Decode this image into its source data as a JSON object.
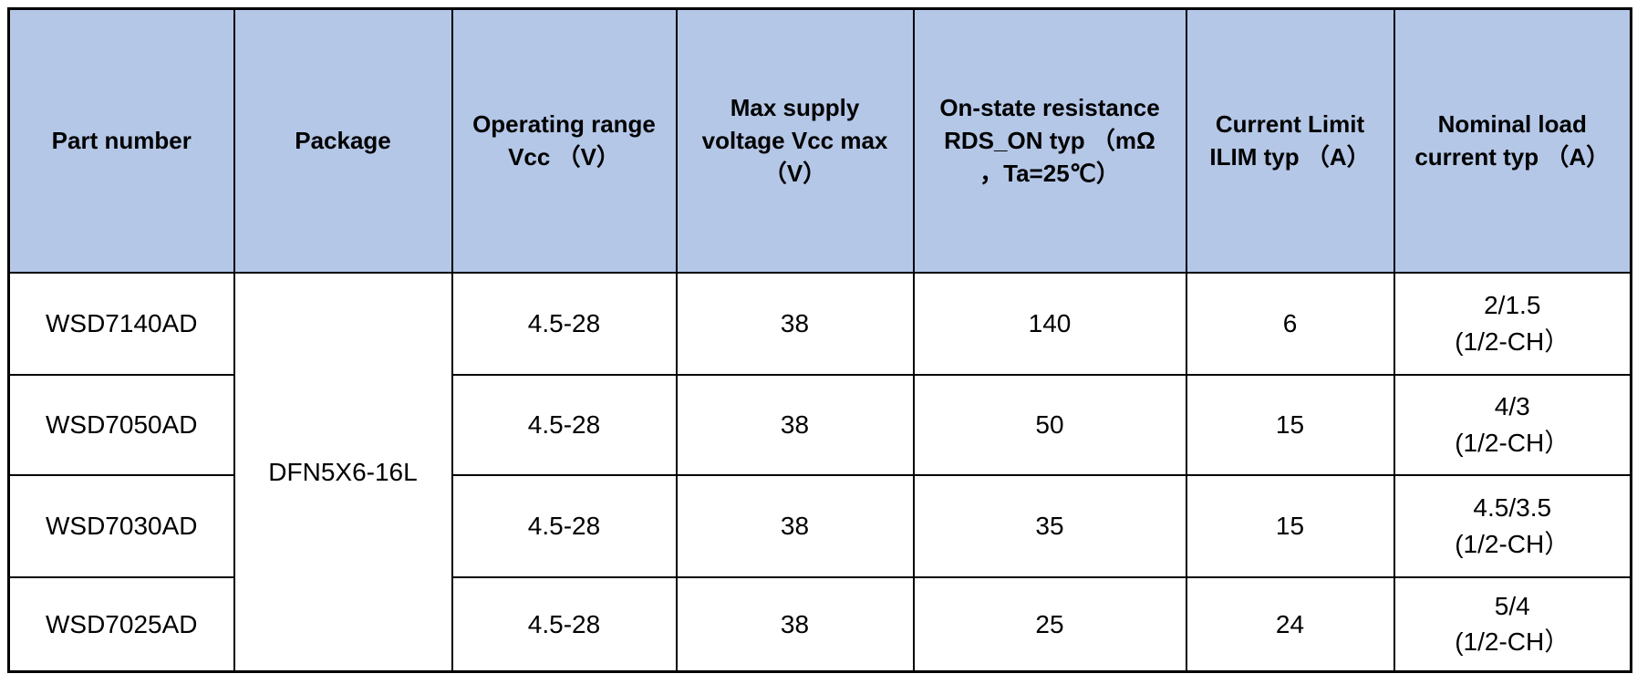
{
  "table": {
    "title_semantic": "part-selection-table",
    "colors": {
      "header_background": "#B4C7E7",
      "grid_border": "#000000",
      "text": "#000000",
      "page_background": "#FFFFFF"
    },
    "columns": [
      "Part number",
      "Package",
      "Operating range\nVcc （V）",
      "Max supply\nvoltage Vcc max\n（V）",
      "On-state resistance\nRDS_ON typ （mΩ\n，Ta=25℃）",
      "Current Limit\nILIM typ （A）",
      "Nominal load\ncurrent typ （A）"
    ],
    "package_merged": "DFN5X6-16L",
    "rows": [
      {
        "part_number": "WSD7140AD",
        "operating_range_vcc": "4.5-28",
        "max_supply_voltage": "38",
        "rds_on_typ": "140",
        "ilim_typ": "6",
        "nominal_load_current": "2/1.5\n(1/2-CH）"
      },
      {
        "part_number": "WSD7050AD",
        "operating_range_vcc": "4.5-28",
        "max_supply_voltage": "38",
        "rds_on_typ": "50",
        "ilim_typ": "15",
        "nominal_load_current": "4/3\n(1/2-CH）"
      },
      {
        "part_number": "WSD7030AD",
        "operating_range_vcc": "4.5-28",
        "max_supply_voltage": "38",
        "rds_on_typ": "35",
        "ilim_typ": "15",
        "nominal_load_current": "4.5/3.5\n(1/2-CH）"
      },
      {
        "part_number": "WSD7025AD",
        "operating_range_vcc": "4.5-28",
        "max_supply_voltage": "38",
        "rds_on_typ": "25",
        "ilim_typ": "24",
        "nominal_load_current": "5/4\n(1/2-CH）"
      }
    ]
  },
  "chart_data": {
    "type": "table",
    "columns": [
      "Part number",
      "Package",
      "Operating range Vcc （V）",
      "Max supply voltage Vcc max （V）",
      "On-state resistance RDS_ON typ （mΩ，Ta=25℃）",
      "Current Limit ILIM typ （A）",
      "Nominal load current typ （A）"
    ],
    "rows": [
      [
        "WSD7140AD",
        "DFN5X6-16L",
        "4.5-28",
        "38",
        "140",
        "6",
        "2/1.5 (1/2-CH）"
      ],
      [
        "WSD7050AD",
        "DFN5X6-16L",
        "4.5-28",
        "38",
        "50",
        "15",
        "4/3 (1/2-CH）"
      ],
      [
        "WSD7030AD",
        "DFN5X6-16L",
        "4.5-28",
        "38",
        "35",
        "15",
        "4.5/3.5 (1/2-CH）"
      ],
      [
        "WSD7025AD",
        "DFN5X6-16L",
        "4.5-28",
        "38",
        "25",
        "24",
        "5/4 (1/2-CH）"
      ]
    ]
  }
}
